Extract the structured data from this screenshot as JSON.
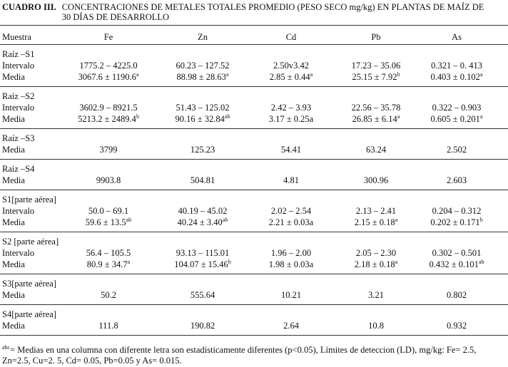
{
  "title": {
    "label": "CUADRO III.",
    "text": "CONCENTRACIONES DE METALES TOTALES PROMEDIO (PESO SECO mg/kg) EN PLANTAS DE MAÍZ DE 30 DÍAS DE DESARROLLO"
  },
  "table": {
    "header": [
      "Muestra",
      "Fe",
      "Zn",
      "Cd",
      "Pb",
      "As"
    ],
    "groups": [
      {
        "name": "Raíz –S1",
        "rows": [
          [
            "Intervalo",
            "1775.2 – 4225.0",
            "60.23 – 127.52",
            "2.50v3.42",
            "17.23 – 35.06",
            "0.321 – 0. 413"
          ],
          [
            "Media",
            {
              "text": "3067.6 ± 1190.6",
              "sup": "a"
            },
            {
              "text": "88.98 ± 28.63",
              "sup": "a"
            },
            {
              "text": "2.85 ± 0.44",
              "sup": "a"
            },
            {
              "text": "25.15 ± 7.92",
              "sup": "b"
            },
            {
              "text": "0.403 ± 0.102",
              "sup": "a"
            }
          ]
        ]
      },
      {
        "name": "Raíz –S2",
        "rows": [
          [
            "Intervalo",
            "3602.9 – 8921.5",
            "51.43 – 125.02",
            "2.42 – 3.93",
            "22.56 – 35.78",
            "0.322 – 0.903"
          ],
          [
            "Media",
            {
              "text": "5213.2 ± 2489.4",
              "sup": "b"
            },
            {
              "text": "90.16 ± 32.84",
              "sup": "ab"
            },
            "3.17 ± 0.25a",
            {
              "text": "26.85 ± 6.14",
              "sup": "a"
            },
            {
              "text": "0.605 ± 0.201",
              "sup": "a"
            }
          ]
        ]
      },
      {
        "name": "Raíz –S3",
        "rows": [
          [
            "Media",
            "3799",
            "125.23",
            "54.41",
            "63.24",
            "2.502"
          ]
        ]
      },
      {
        "name": "Raíz –S4",
        "rows": [
          [
            "Media",
            "9903.8",
            "504.81",
            "4.81",
            "300.96",
            "2.603"
          ]
        ]
      },
      {
        "name": "S1[parte aérea]",
        "rows": [
          [
            "Intervalo",
            "50.0 – 69.1",
            "40.19 – 45.02",
            "2.02 – 2.54",
            "2.13 – 2.41",
            "0.204 – 0.312"
          ],
          [
            "Media",
            {
              "text": "59.6 ± 13.5",
              "sup": "ab"
            },
            {
              "text": "40.24 ± 3.40",
              "sup": "ab"
            },
            "2.21 ± 0.03a",
            {
              "text": "2.15 ± 0.18",
              "sup": "a"
            },
            {
              "text": "0.202 ± 0.171",
              "sup": "b"
            }
          ]
        ]
      },
      {
        "name": "S2 [parte aérea]",
        "rows": [
          [
            "Intervalo",
            "56.4 – 105.5",
            "93.13 – 115.01",
            "1.96 – 2.00",
            "2.05 – 2.30",
            "0.302 – 0.501"
          ],
          [
            "Media",
            {
              "text": "80.9 ± 34.7",
              "sup": "a"
            },
            {
              "text": "104.07 ± 15.46",
              "sup": "b"
            },
            "1.98 ± 0.03a",
            {
              "text": "2.18 ± 0.18",
              "sup": "a"
            },
            {
              "text": "0.432 ± 0.101",
              "sup": "ab"
            }
          ]
        ]
      },
      {
        "name": "S3[parte aérea]",
        "rows": [
          [
            "Media",
            "50.2",
            "555.64",
            "10.21",
            "3.21",
            "0.802"
          ]
        ]
      },
      {
        "name": "S4[parte aérea]",
        "rows": [
          [
            "Media",
            "111.8",
            "190.82",
            "2.64",
            "10.8",
            "0.932"
          ]
        ]
      }
    ]
  },
  "footnote": {
    "sup": "abc",
    "text": "= Medias en una columna con diferente letra son estadísticamente diferentes (p<0.05), Límites de deteccion (LD), mg/kg: Fe= 2.5, Zn=2.5, Cu=2. 5, Cd= 0.05, Pb=0.05 y As= 0.015."
  }
}
